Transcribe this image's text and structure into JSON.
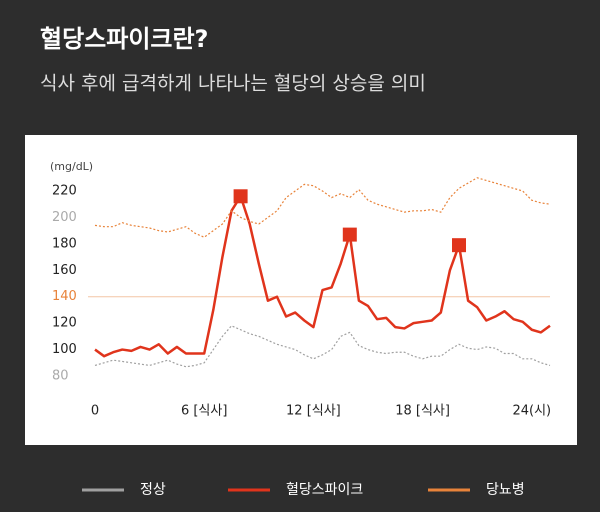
{
  "chart_data": {
    "type": "line",
    "title": "혈당스파이크란?",
    "subtitle": "식사 후에 급격하게 나타나는 혈당의 상승을 의미",
    "y_label": "(mg/dL)",
    "x": [
      0,
      0.5,
      1,
      1.5,
      2,
      2.5,
      3,
      3.5,
      4,
      4.5,
      5,
      5.5,
      6,
      6.5,
      7,
      7.5,
      8,
      8.5,
      9,
      9.5,
      10,
      10.5,
      11,
      11.5,
      12,
      12.5,
      13,
      13.5,
      14,
      14.5,
      15,
      15.5,
      16,
      16.5,
      17,
      17.5,
      18,
      18.5,
      19,
      19.5,
      20,
      20.5,
      21,
      21.5,
      22,
      22.5,
      23,
      23.5,
      24,
      24.5,
      25
    ],
    "series": [
      {
        "name": "정상",
        "color": "#a0a0a0",
        "dotted": true,
        "values": [
          88,
          90,
          92,
          91,
          90,
          89,
          88,
          90,
          92,
          89,
          87,
          88,
          90,
          100,
          110,
          118,
          115,
          112,
          110,
          107,
          104,
          102,
          100,
          96,
          93,
          96,
          100,
          110,
          113,
          103,
          100,
          98,
          97,
          98,
          98,
          95,
          93,
          95,
          95,
          100,
          104,
          101,
          100,
          102,
          101,
          97,
          97,
          93,
          93,
          90,
          88
        ]
      },
      {
        "name": "혈당스파이크",
        "color": "#e0341c",
        "dotted": false,
        "peak_markers": true,
        "values": [
          100,
          95,
          98,
          100,
          99,
          102,
          100,
          104,
          97,
          102,
          97,
          97,
          97,
          130,
          170,
          205,
          216,
          195,
          165,
          137,
          140,
          125,
          128,
          122,
          117,
          145,
          147,
          165,
          187,
          137,
          133,
          123,
          124,
          117,
          116,
          120,
          121,
          122,
          128,
          160,
          179,
          137,
          132,
          122,
          125,
          129,
          123,
          121,
          115,
          113,
          118
        ]
      },
      {
        "name": "당뇨병",
        "color": "#e8833a",
        "dotted": true,
        "values": [
          194,
          193,
          193,
          196,
          194,
          193,
          192,
          190,
          189,
          191,
          193,
          188,
          185,
          190,
          195,
          205,
          200,
          197,
          195,
          200,
          205,
          215,
          220,
          225,
          224,
          220,
          215,
          218,
          215,
          221,
          213,
          210,
          208,
          206,
          204,
          205,
          205,
          206,
          204,
          215,
          222,
          226,
          230,
          228,
          226,
          224,
          222,
          220,
          213,
          211,
          210
        ]
      }
    ],
    "xlim": [
      0,
      25
    ],
    "xticks": [
      0,
      {
        "value": 6,
        "label": "6 [식사]"
      },
      {
        "value": 12,
        "label": "12 [식사]"
      },
      {
        "value": 18,
        "label": "18 [식사]"
      },
      {
        "value": 24,
        "label": "24(시)"
      }
    ],
    "ylim": [
      80,
      220
    ],
    "yticks": [
      80,
      100,
      120,
      140,
      160,
      180,
      200,
      220
    ],
    "ytick_colors": [
      "#aaaaaa",
      "#222222",
      "#222222",
      "#e8833a",
      "#222222",
      "#222222",
      "#aaaaaa",
      "#222222"
    ],
    "reference_line": 140,
    "reference_color": "#f3c6a6"
  }
}
